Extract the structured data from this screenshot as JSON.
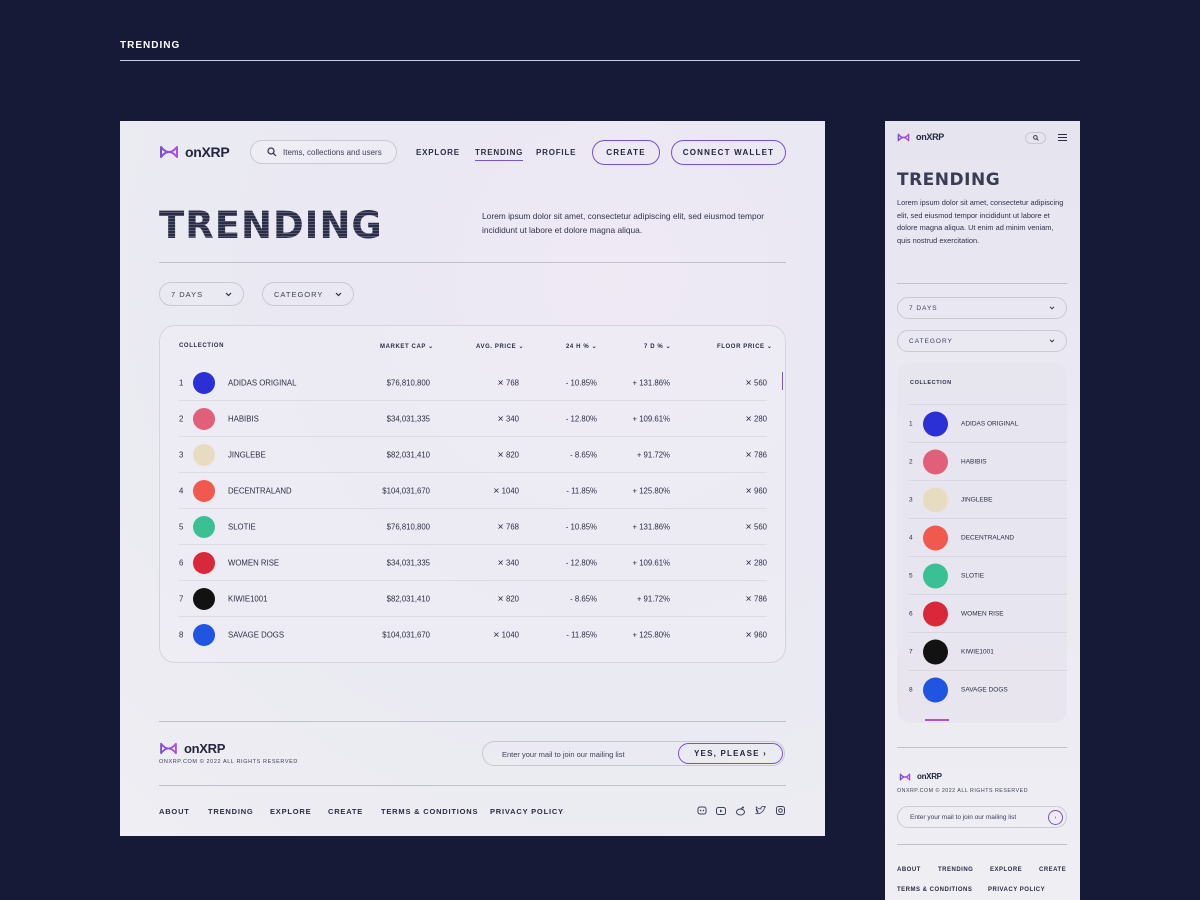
{
  "section_title": "TRENDING",
  "brand": {
    "name": "onXRP"
  },
  "colors": {
    "background": "#171a36",
    "accent": "#7b4fd6",
    "text": "#2a2d45"
  },
  "desktop": {
    "search_placeholder": "Items, collections and users",
    "nav": [
      "EXPLORE",
      "TRENDING",
      "PROFILE"
    ],
    "create_label": "CREATE",
    "connect_label": "CONNECT WALLET",
    "hero_title": "TRENDING",
    "hero_desc": "Lorem ipsum dolor sit amet, consectetur adipiscing elit, sed eiusmod tempor incididunt ut labore et dolore magna aliqua.",
    "filter_days": "7 DAYS",
    "filter_category": "CATEGORY",
    "columns": [
      "COLLECTION",
      "MARKET CAP",
      "AVG. PRICE",
      "24 H %",
      "7 D %",
      "FLOOR PRICE"
    ],
    "rows": [
      {
        "rank": "1",
        "name": "ADIDAS ORIGINAL",
        "cap": "$76,810,800",
        "avg": "✕ 768",
        "h24": "- 10.85%",
        "d7": "+ 131.86%",
        "floor": "✕ 560",
        "avatar_color": "#2b2fd6"
      },
      {
        "rank": "2",
        "name": "HABIBIS",
        "cap": "$34,031,335",
        "avg": "✕ 340",
        "h24": "- 12.80%",
        "d7": "+ 109.61%",
        "floor": "✕ 280",
        "avatar_color": "#e0607a"
      },
      {
        "rank": "3",
        "name": "JINGLEBE",
        "cap": "$82,031,410",
        "avg": "✕ 820",
        "h24": "- 8.65%",
        "d7": "+ 91.72%",
        "floor": "✕ 786",
        "avatar_color": "#e8dcc0"
      },
      {
        "rank": "4",
        "name": "DECENTRALAND",
        "cap": "$104,031,670",
        "avg": "✕ 1040",
        "h24": "- 11.85%",
        "d7": "+ 125.80%",
        "floor": "✕ 960",
        "avatar_color": "#f0594e"
      },
      {
        "rank": "5",
        "name": "SLOTIE",
        "cap": "$76,810,800",
        "avg": "✕ 768",
        "h24": "- 10.85%",
        "d7": "+ 131.86%",
        "floor": "✕ 560",
        "avatar_color": "#3bbf94"
      },
      {
        "rank": "6",
        "name": "WOMEN RISE",
        "cap": "$34,031,335",
        "avg": "✕ 340",
        "h24": "- 12.80%",
        "d7": "+ 109.61%",
        "floor": "✕ 280",
        "avatar_color": "#d8283a"
      },
      {
        "rank": "7",
        "name": "KIWIE1001",
        "cap": "$82,031,410",
        "avg": "✕ 820",
        "h24": "- 8.65%",
        "d7": "+ 91.72%",
        "floor": "✕ 786",
        "avatar_color": "#121212"
      },
      {
        "rank": "8",
        "name": "SAVAGE DOGS",
        "cap": "$104,031,670",
        "avg": "✕ 1040",
        "h24": "- 11.85%",
        "d7": "+ 125.80%",
        "floor": "✕ 960",
        "avatar_color": "#1f55e0"
      }
    ],
    "footer": {
      "copyright": "ONXRP.COM © 2022 ALL RIGHTS RESERVED",
      "mail_placeholder": "Enter your mail to join our mailing list",
      "mail_button": "YES, PLEASE ›",
      "links": [
        "ABOUT",
        "TRENDING",
        "EXPLORE",
        "CREATE",
        "TERMS & CONDITIONS",
        "PRIVACY POLICY"
      ],
      "social_icons": [
        "discord-icon",
        "youtube-icon",
        "reddit-icon",
        "twitter-icon",
        "instagram-icon"
      ]
    }
  },
  "mobile": {
    "hero_title": "TRENDING",
    "hero_desc": "Lorem ipsum dolor sit amet, consectetur adipiscing elit, sed eiusmod tempor incididunt ut labore et dolore magna aliqua. Ut enim ad minim veniam, quis nostrud exercitation.",
    "filter_days": "7 DAYS",
    "filter_category": "CATEGORY",
    "column": "COLLECTION",
    "mail_button": "›",
    "links_row1": [
      "ABOUT",
      "TRENDING",
      "EXPLORE",
      "CREATE"
    ],
    "links_row2": [
      "TERMS & CONDITIONS",
      "PRIVACY POLICY"
    ]
  }
}
